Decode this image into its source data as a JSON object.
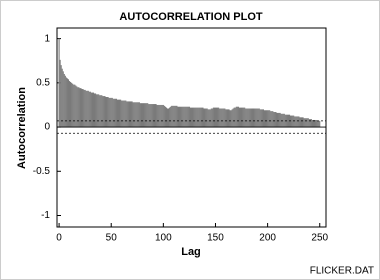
{
  "chart_data": {
    "type": "bar",
    "title": "AUTOCORRELATION PLOT",
    "x_label": "Lag",
    "y_label": "Autocorrelation",
    "footer": "FLICKER.DAT",
    "x": [
      0,
      1,
      2,
      3,
      4,
      5,
      6,
      7,
      8,
      9,
      10,
      11,
      12,
      13,
      14,
      15,
      16,
      17,
      18,
      19,
      20,
      21,
      22,
      23,
      24,
      25,
      26,
      27,
      28,
      29,
      30,
      31,
      32,
      33,
      34,
      35,
      36,
      37,
      38,
      39,
      40,
      41,
      42,
      43,
      44,
      45,
      46,
      47,
      48,
      49,
      50,
      51,
      52,
      53,
      54,
      55,
      56,
      57,
      58,
      59,
      60,
      61,
      62,
      63,
      64,
      65,
      66,
      67,
      68,
      69,
      70,
      71,
      72,
      73,
      74,
      75,
      76,
      77,
      78,
      79,
      80,
      81,
      82,
      83,
      84,
      85,
      86,
      87,
      88,
      89,
      90,
      91,
      92,
      93,
      94,
      95,
      96,
      97,
      98,
      99,
      100,
      101,
      102,
      103,
      104,
      105,
      106,
      107,
      108,
      109,
      110,
      111,
      112,
      113,
      114,
      115,
      116,
      117,
      118,
      119,
      120,
      121,
      122,
      123,
      124,
      125,
      126,
      127,
      128,
      129,
      130,
      131,
      132,
      133,
      134,
      135,
      136,
      137,
      138,
      139,
      140,
      141,
      142,
      143,
      144,
      145,
      146,
      147,
      148,
      149,
      150,
      151,
      152,
      153,
      154,
      155,
      156,
      157,
      158,
      159,
      160,
      161,
      162,
      163,
      164,
      165,
      166,
      167,
      168,
      169,
      170,
      171,
      172,
      173,
      174,
      175,
      176,
      177,
      178,
      179,
      180,
      181,
      182,
      183,
      184,
      185,
      186,
      187,
      188,
      189,
      190,
      191,
      192,
      193,
      194,
      195,
      196,
      197,
      198,
      199,
      200,
      201,
      202,
      203,
      204,
      205,
      206,
      207,
      208,
      209,
      210,
      211,
      212,
      213,
      214,
      215,
      216,
      217,
      218,
      219,
      220,
      221,
      222,
      223,
      224,
      225,
      226,
      227,
      228,
      229,
      230,
      231,
      232,
      233,
      234,
      235,
      236,
      237,
      238,
      239,
      240,
      241,
      242,
      243,
      244,
      245,
      246,
      247,
      248,
      249,
      250
    ],
    "values": [
      1,
      0.76,
      0.7,
      0.66,
      0.63,
      0.6,
      0.58,
      0.56,
      0.55,
      0.54,
      0.52,
      0.51,
      0.5,
      0.49,
      0.48,
      0.48,
      0.47,
      0.46,
      0.45,
      0.45,
      0.44,
      0.44,
      0.43,
      0.43,
      0.42,
      0.42,
      0.41,
      0.41,
      0.41,
      0.4,
      0.4,
      0.39,
      0.39,
      0.39,
      0.38,
      0.38,
      0.37,
      0.37,
      0.37,
      0.36,
      0.36,
      0.36,
      0.35,
      0.35,
      0.35,
      0.34,
      0.34,
      0.34,
      0.33,
      0.33,
      0.33,
      0.33,
      0.32,
      0.32,
      0.32,
      0.32,
      0.31,
      0.31,
      0.31,
      0.31,
      0.3,
      0.3,
      0.3,
      0.3,
      0.3,
      0.29,
      0.29,
      0.29,
      0.29,
      0.29,
      0.29,
      0.28,
      0.28,
      0.28,
      0.28,
      0.28,
      0.28,
      0.28,
      0.27,
      0.27,
      0.27,
      0.27,
      0.27,
      0.27,
      0.27,
      0.27,
      0.26,
      0.26,
      0.26,
      0.26,
      0.26,
      0.26,
      0.26,
      0.26,
      0.25,
      0.25,
      0.25,
      0.25,
      0.25,
      0.25,
      0.25,
      0.24,
      0.23,
      0.22,
      0.21,
      0.21,
      0.22,
      0.23,
      0.24,
      0.24,
      0.24,
      0.24,
      0.24,
      0.24,
      0.23,
      0.23,
      0.23,
      0.23,
      0.23,
      0.23,
      0.23,
      0.23,
      0.23,
      0.23,
      0.23,
      0.23,
      0.22,
      0.22,
      0.22,
      0.22,
      0.22,
      0.22,
      0.22,
      0.22,
      0.22,
      0.22,
      0.22,
      0.22,
      0.22,
      0.21,
      0.21,
      0.21,
      0.21,
      0.2,
      0.2,
      0.2,
      0.21,
      0.21,
      0.22,
      0.22,
      0.22,
      0.22,
      0.22,
      0.22,
      0.21,
      0.21,
      0.21,
      0.21,
      0.21,
      0.21,
      0.2,
      0.2,
      0.2,
      0.2,
      0.19,
      0.19,
      0.2,
      0.21,
      0.22,
      0.22,
      0.23,
      0.23,
      0.23,
      0.22,
      0.22,
      0.22,
      0.22,
      0.22,
      0.22,
      0.21,
      0.21,
      0.21,
      0.21,
      0.21,
      0.21,
      0.21,
      0.21,
      0.21,
      0.21,
      0.21,
      0.21,
      0.21,
      0.21,
      0.2,
      0.2,
      0.2,
      0.2,
      0.19,
      0.19,
      0.19,
      0.19,
      0.19,
      0.19,
      0.18,
      0.18,
      0.18,
      0.17,
      0.17,
      0.17,
      0.16,
      0.16,
      0.16,
      0.16,
      0.15,
      0.15,
      0.15,
      0.15,
      0.14,
      0.14,
      0.14,
      0.14,
      0.14,
      0.13,
      0.13,
      0.13,
      0.13,
      0.12,
      0.12,
      0.12,
      0.12,
      0.12,
      0.11,
      0.11,
      0.11,
      0.11,
      0.1,
      0.1,
      0.1,
      0.1,
      0.1,
      0.09,
      0.09,
      0.09,
      0.08,
      0.08,
      0.08,
      0.08,
      0.08,
      0.07,
      0.07,
      0.07
    ],
    "color": "#7a7a7a",
    "reference_lines": [
      0.07,
      -0.07
    ],
    "xlim": [
      -2,
      256
    ],
    "xticks": [
      0,
      50,
      100,
      150,
      200,
      250
    ],
    "ylim": [
      -1.13,
      1.12
    ],
    "yticks": [
      1,
      0.5,
      0,
      -0.5,
      -1
    ]
  }
}
